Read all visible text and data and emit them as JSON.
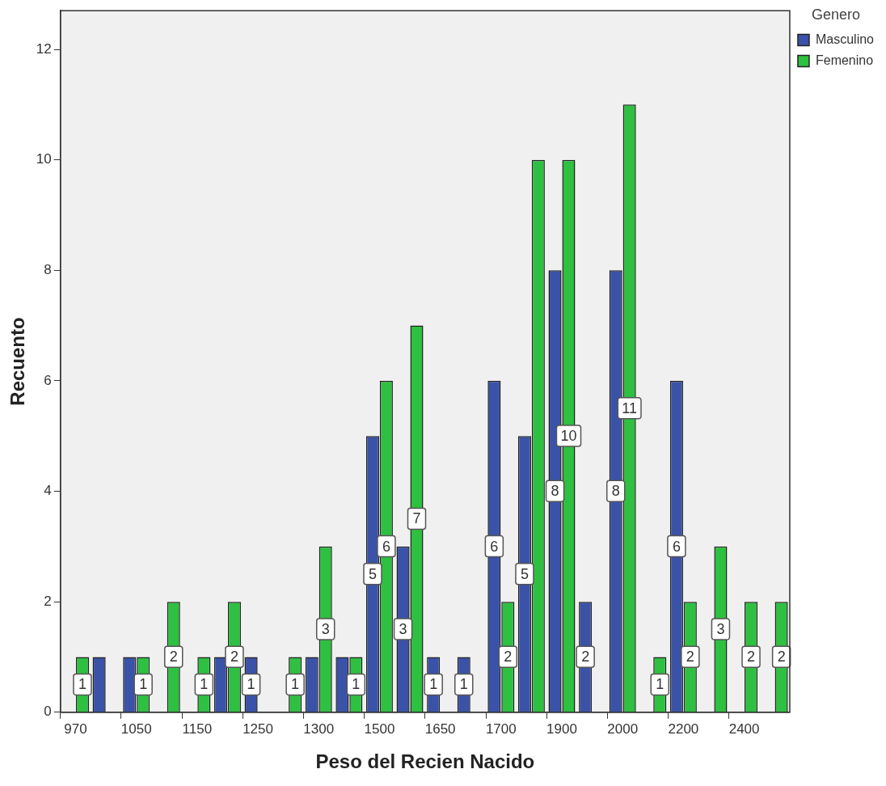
{
  "chart_data": {
    "type": "bar",
    "xlabel": "Peso del Recien Nacido",
    "ylabel": "Recuento",
    "legend_title": "Genero",
    "legend": "top right",
    "grid": false,
    "categories": [
      "970",
      null,
      "1050",
      null,
      "1150",
      null,
      "1250",
      null,
      "1300",
      null,
      "1500",
      null,
      "1650",
      null,
      "1700",
      null,
      "1900",
      null,
      "2000",
      null,
      "2200",
      null,
      "2400",
      null
    ],
    "ylim": [
      0,
      12.7
    ],
    "yticks": [
      0,
      2,
      4,
      6,
      8,
      10,
      12
    ],
    "series": [
      {
        "name": "Masculino",
        "color": "#3a53a8",
        "values": [
          null,
          1,
          1,
          null,
          null,
          1,
          1,
          null,
          1,
          1,
          5,
          3,
          1,
          1,
          6,
          5,
          8,
          2,
          8,
          null,
          6,
          null,
          null,
          null
        ],
        "value_labels": [
          null,
          null,
          null,
          null,
          null,
          null,
          "1",
          null,
          null,
          null,
          "5",
          "3",
          "1",
          "1",
          "6",
          "5",
          "8",
          "2",
          "8",
          null,
          "6",
          null,
          null,
          null
        ]
      },
      {
        "name": "Femenino",
        "color": "#2ec040",
        "values": [
          1,
          null,
          1,
          2,
          1,
          2,
          null,
          1,
          3,
          1,
          6,
          7,
          null,
          null,
          2,
          10,
          10,
          null,
          11,
          1,
          2,
          3,
          2,
          2
        ],
        "value_labels": [
          "1",
          null,
          "1",
          "2",
          "1",
          "2",
          null,
          "1",
          "3",
          "1",
          "6",
          "7",
          null,
          null,
          "2",
          null,
          "10",
          null,
          "11",
          "1",
          "2",
          "3",
          "2",
          "2"
        ]
      }
    ]
  }
}
